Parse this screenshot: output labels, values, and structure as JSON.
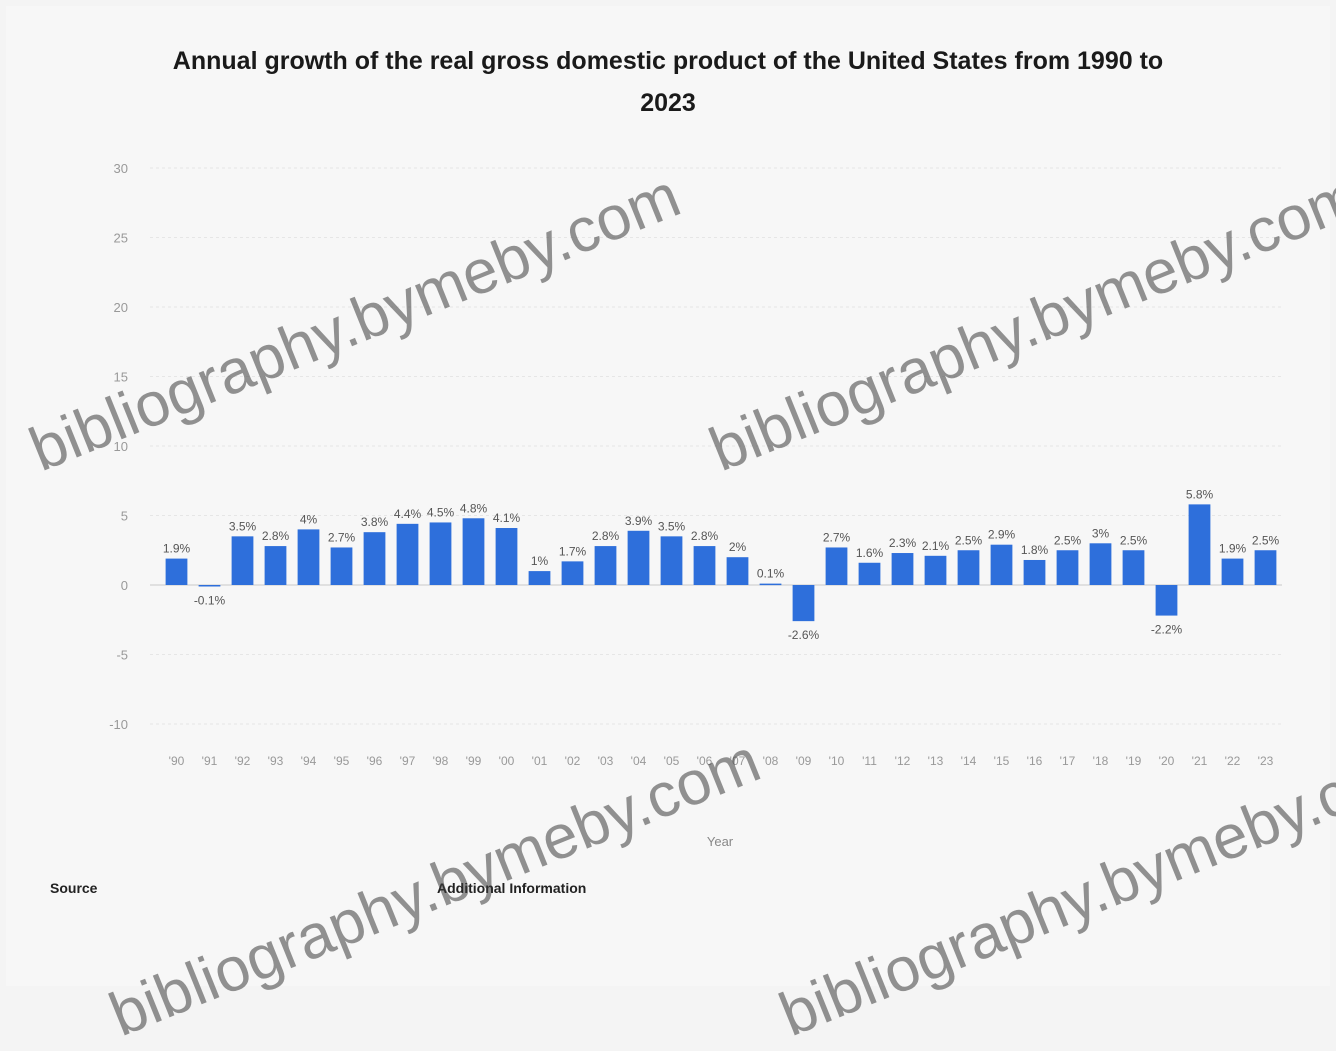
{
  "chart_data": {
    "type": "bar",
    "title_lines": [
      "Annual growth of the real gross domestic product of the United States from 1990 to",
      "2023"
    ],
    "xlabel": "Year",
    "ylabel": "",
    "ylim": [
      -10,
      30
    ],
    "yticks": [
      "-10",
      "-5",
      "0",
      "5",
      "10",
      "15",
      "20",
      "25",
      "30"
    ],
    "ytick_values": [
      -10,
      -5,
      0,
      5,
      10,
      15,
      20,
      25,
      30
    ],
    "bar_color": "#2e6fdb",
    "categories": [
      "'90",
      "'91",
      "'92",
      "'93",
      "'94",
      "'95",
      "'96",
      "'97",
      "'98",
      "'99",
      "'00",
      "'01",
      "'02",
      "'03",
      "'04",
      "'05",
      "'06",
      "'07",
      "'08",
      "'09",
      "'10",
      "'11",
      "'12",
      "'13",
      "'14",
      "'15",
      "'16",
      "'17",
      "'18",
      "'19",
      "'20",
      "'21",
      "'22",
      "'23"
    ],
    "values": [
      1.9,
      -0.1,
      3.5,
      2.8,
      4.0,
      2.7,
      3.8,
      4.4,
      4.5,
      4.8,
      4.1,
      1.0,
      1.7,
      2.8,
      3.9,
      3.5,
      2.8,
      2.0,
      0.1,
      -2.6,
      2.7,
      1.6,
      2.3,
      2.1,
      2.5,
      2.9,
      1.8,
      2.5,
      3.0,
      2.5,
      -2.2,
      5.8,
      1.9,
      2.5
    ],
    "data_labels": [
      "1.9%",
      "-0.1%",
      "3.5%",
      "2.8%",
      "4%",
      "2.7%",
      "3.8%",
      "4.4%",
      "4.5%",
      "4.8%",
      "4.1%",
      "1%",
      "1.7%",
      "2.8%",
      "3.9%",
      "3.5%",
      "2.8%",
      "2%",
      "0.1%",
      "-2.6%",
      "2.7%",
      "1.6%",
      "2.3%",
      "2.1%",
      "2.5%",
      "2.9%",
      "1.8%",
      "2.5%",
      "3%",
      "2.5%",
      "-2.2%",
      "5.8%",
      "1.9%",
      "2.5%"
    ],
    "grid": true,
    "legend": "none"
  },
  "footer": {
    "source_header": "Source",
    "source_text": "",
    "info_header": "Additional Information",
    "info_text": ""
  },
  "watermark": {
    "text": "bibliography.bymeby.com"
  }
}
